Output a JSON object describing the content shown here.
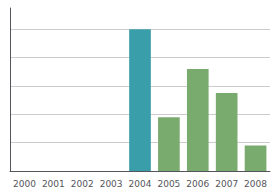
{
  "chart_data": {
    "type": "bar",
    "categories": [
      "2000",
      "2001",
      "2002",
      "2003",
      "2004",
      "2005",
      "2006",
      "2007",
      "2008"
    ],
    "values": [
      0,
      0,
      0,
      0,
      100,
      38,
      72,
      55,
      18
    ],
    "colors": [
      "#3a9eaa",
      "#3a9eaa",
      "#3a9eaa",
      "#3a9eaa",
      "#3a9eaa",
      "#7aab6e",
      "#7aab6e",
      "#7aab6e",
      "#7aab6e"
    ],
    "ylim": [
      0,
      115
    ],
    "yticks": [
      0,
      20,
      40,
      60,
      80,
      100
    ],
    "grid": true,
    "tick_labels": "x"
  }
}
